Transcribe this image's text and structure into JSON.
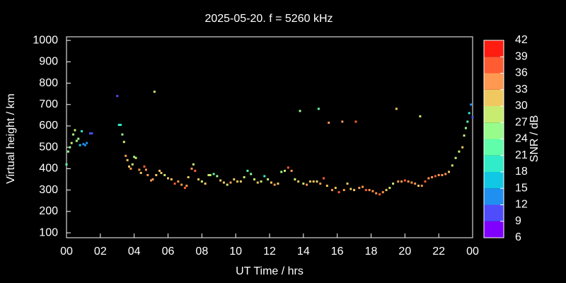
{
  "chart_data": {
    "type": "scatter",
    "title": "2025-05-20. f = 5260 kHz",
    "x_label": "UT Time / hrs",
    "y_label": "Virtual height / km",
    "colorbar_label": "SNR / dB",
    "xlim": [
      0,
      24
    ],
    "xticks": [
      {
        "value": 0,
        "label": "00"
      },
      {
        "value": 2,
        "label": "02"
      },
      {
        "value": 4,
        "label": "04"
      },
      {
        "value": 6,
        "label": "06"
      },
      {
        "value": 8,
        "label": "08"
      },
      10,
      12,
      14,
      16,
      18,
      20,
      22,
      {
        "value": 24,
        "label": "00"
      }
    ],
    "ylim": [
      77,
      1017
    ],
    "yticks": [
      100,
      200,
      300,
      400,
      500,
      600,
      700,
      800,
      900,
      1000
    ],
    "clim": [
      6,
      42
    ],
    "cticks": [
      6,
      9,
      12,
      15,
      18,
      21,
      24,
      27,
      30,
      33,
      36,
      39,
      42
    ],
    "colormap": [
      "#8000ff",
      "#4f4cfc",
      "#1f90f0",
      "#10c8e4",
      "#30ecc8",
      "#60feaa",
      "#98fc8c",
      "#c8ec70",
      "#f0c860",
      "#ff9850",
      "#ff5c34",
      "#ff1c10"
    ],
    "series": [
      {
        "name": "SNR",
        "x": [
          0.0,
          0.1,
          0.2,
          0.3,
          0.4,
          0.5,
          0.6,
          0.7,
          0.8,
          0.9,
          1.0,
          1.1,
          1.2,
          1.4,
          1.5,
          3.0,
          3.1,
          3.2,
          3.3,
          3.4,
          3.5,
          3.6,
          3.7,
          3.8,
          3.9,
          4.0,
          4.1,
          4.3,
          4.4,
          4.6,
          4.7,
          4.8,
          5.0,
          5.1,
          5.2,
          5.3,
          5.5,
          5.6,
          5.8,
          6.0,
          6.2,
          6.4,
          6.6,
          6.8,
          7.0,
          7.1,
          7.2,
          7.4,
          7.5,
          7.6,
          7.8,
          8.0,
          8.2,
          8.4,
          8.5,
          8.7,
          8.9,
          9.1,
          9.3,
          9.5,
          9.7,
          9.9,
          10.1,
          10.3,
          10.5,
          10.7,
          10.9,
          11.1,
          11.3,
          11.5,
          11.7,
          11.9,
          12.1,
          12.3,
          12.5,
          12.7,
          12.9,
          13.1,
          13.3,
          13.5,
          13.7,
          13.8,
          14.0,
          14.2,
          14.4,
          14.6,
          14.8,
          14.9,
          15.0,
          15.2,
          15.4,
          15.5,
          15.7,
          15.9,
          16.1,
          16.3,
          16.4,
          16.6,
          16.8,
          17.0,
          17.1,
          17.3,
          17.5,
          17.7,
          17.9,
          18.1,
          18.3,
          18.5,
          18.7,
          18.9,
          19.1,
          19.3,
          19.5,
          19.6,
          19.8,
          20.0,
          20.2,
          20.4,
          20.6,
          20.8,
          20.9,
          21.0,
          21.2,
          21.4,
          21.6,
          21.8,
          22.0,
          22.2,
          22.4,
          22.6,
          22.8,
          23.0,
          23.2,
          23.4,
          23.5,
          23.6,
          23.7,
          23.8,
          23.9,
          24.0
        ],
        "values": [
          420,
          480,
          500,
          520,
          560,
          580,
          530,
          540,
          510,
          575,
          515,
          510,
          520,
          565,
          565,
          740,
          605,
          605,
          560,
          525,
          460,
          440,
          410,
          400,
          420,
          455,
          450,
          395,
          380,
          410,
          395,
          370,
          345,
          350,
          760,
          370,
          390,
          380,
          370,
          355,
          350,
          330,
          340,
          325,
          310,
          320,
          360,
          400,
          420,
          390,
          350,
          340,
          330,
          370,
          370,
          375,
          365,
          345,
          335,
          325,
          335,
          350,
          340,
          340,
          360,
          390,
          375,
          350,
          335,
          340,
          365,
          350,
          335,
          325,
          330,
          385,
          390,
          405,
          390,
          350,
          340,
          670,
          330,
          325,
          340,
          340,
          340,
          680,
          330,
          355,
          320,
          615,
          300,
          310,
          290,
          620,
          300,
          330,
          305,
          300,
          620,
          310,
          315,
          300,
          300,
          295,
          285,
          280,
          290,
          300,
          310,
          330,
          680,
          340,
          340,
          345,
          340,
          335,
          330,
          320,
          645,
          320,
          340,
          355,
          360,
          365,
          370,
          370,
          375,
          385,
          415,
          450,
          480,
          500,
          555,
          590,
          620,
          660,
          700,
          640
        ],
        "snr": [
          22,
          24,
          26,
          27,
          25,
          28,
          24,
          26,
          17,
          19,
          13,
          12,
          14,
          10,
          10,
          11,
          20,
          18,
          24,
          28,
          33,
          30,
          31,
          33,
          28,
          26,
          28,
          34,
          30,
          37,
          35,
          33,
          34,
          33,
          27,
          30,
          31,
          30,
          29,
          32,
          30,
          37,
          33,
          35,
          38,
          34,
          31,
          33,
          29,
          37,
          30,
          28,
          31,
          27,
          29,
          21,
          25,
          30,
          31,
          28,
          33,
          30,
          31,
          32,
          29,
          22,
          26,
          28,
          31,
          29,
          20,
          28,
          32,
          33,
          30,
          26,
          28,
          38,
          33,
          29,
          31,
          26,
          28,
          34,
          31,
          32,
          30,
          22,
          33,
          36,
          30,
          33,
          34,
          31,
          36,
          35,
          33,
          31,
          30,
          32,
          38,
          34,
          35,
          36,
          35,
          34,
          35,
          38,
          33,
          31,
          29,
          27,
          31,
          34,
          33,
          36,
          34,
          33,
          33,
          32,
          27,
          33,
          36,
          35,
          34,
          36,
          35,
          35,
          33,
          31,
          29,
          27,
          28,
          30,
          29,
          25,
          21,
          18,
          14,
          9
        ]
      }
    ]
  }
}
